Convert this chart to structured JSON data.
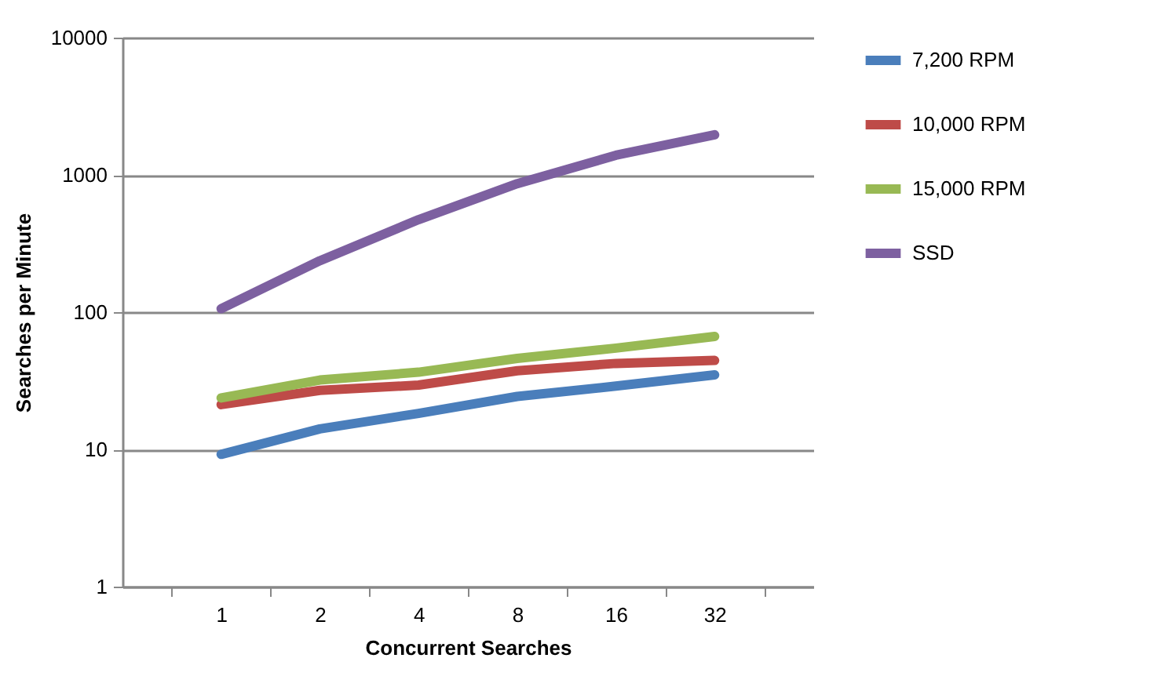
{
  "chart_data": {
    "type": "line",
    "xlabel": "Concurrent Searches",
    "ylabel": "Searches per Minute",
    "categories": [
      "1",
      "2",
      "4",
      "8",
      "16",
      "32"
    ],
    "series": [
      {
        "name": "7,200 RPM",
        "color": "#4a7ebb",
        "values": [
          9.2,
          14.1,
          18.3,
          24.3,
          28.9,
          34.9
        ]
      },
      {
        "name": "10,000 RPM",
        "color": "#be4b48",
        "values": [
          21.2,
          26.9,
          29.4,
          37.4,
          42.3,
          44.5
        ]
      },
      {
        "name": "15,000  RPM",
        "color": "#98b954",
        "values": [
          23.7,
          32,
          36.5,
          46,
          54.7,
          66.5
        ]
      },
      {
        "name": "SSD",
        "color": "#7d60a0",
        "values": [
          106,
          237,
          472,
          863,
          1390,
          1960
        ]
      }
    ],
    "log": "y",
    "ylim": [
      1,
      10000
    ],
    "yticks": [
      1,
      10,
      100,
      1000,
      10000
    ],
    "grid": "y",
    "legend": "right",
    "marker": "none",
    "line_style": "solid"
  }
}
